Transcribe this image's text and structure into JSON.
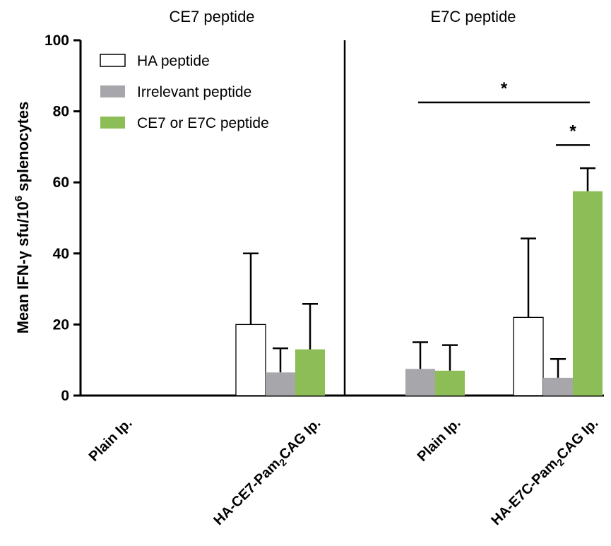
{
  "chart_data": {
    "type": "bar",
    "ylabel": {
      "prefix": "Mean IFN-γ  sfu/10",
      "sup": "6",
      "suffix": " splenocytes"
    },
    "ylim": [
      0,
      100
    ],
    "yticks": [
      "0",
      "20",
      "40",
      "60",
      "80",
      "100"
    ],
    "ytick_values": [
      0,
      20,
      40,
      60,
      80,
      100
    ],
    "legend": {
      "placement": "top-left",
      "entries": [
        {
          "name": "HA peptide",
          "color": "#ffffff"
        },
        {
          "name": "Irrelevant peptide",
          "color": "#a6a6ab"
        },
        {
          "name": "CE7 or E7C peptide",
          "color": "#8dbd56"
        }
      ]
    },
    "panels": [
      {
        "title": "CE7 peptide",
        "categories": [
          {
            "label": "Plain Ip.",
            "parts": [
              {
                "t": "Plain Ip."
              }
            ]
          },
          {
            "label": "HA-CE7-Pam2CAG Ip.",
            "parts": [
              {
                "t": "HA-CE7-Pam"
              },
              {
                "t": "2",
                "sub": true
              },
              {
                "t": "CAG Ip."
              }
            ]
          }
        ],
        "series": [
          {
            "name": "HA peptide",
            "values": [
              0,
              20
            ],
            "errors": [
              0,
              20
            ]
          },
          {
            "name": "Irrelevant peptide",
            "values": [
              0,
              6.5
            ],
            "errors": [
              0,
              6.8
            ]
          },
          {
            "name": "CE7 or E7C peptide",
            "values": [
              0,
              13
            ],
            "errors": [
              0,
              12.8
            ]
          }
        ]
      },
      {
        "title": "E7C peptide",
        "categories": [
          {
            "label": "Plain Ip.",
            "parts": [
              {
                "t": "Plain Ip."
              }
            ]
          },
          {
            "label": "HA-E7C-Pam2CAG Ip.",
            "parts": [
              {
                "t": "HA-E7C-Pam"
              },
              {
                "t": "2",
                "sub": true
              },
              {
                "t": "CAG Ip."
              }
            ]
          }
        ],
        "series": [
          {
            "name": "HA peptide",
            "values": [
              0,
              22
            ],
            "errors": [
              0,
              22.2
            ]
          },
          {
            "name": "Irrelevant peptide",
            "values": [
              7.5,
              5
            ],
            "errors": [
              7.5,
              5.3
            ]
          },
          {
            "name": "CE7 or E7C peptide",
            "values": [
              7,
              57.5
            ],
            "errors": [
              7.2,
              6.5
            ]
          }
        ],
        "annotations": [
          {
            "text": "*",
            "from": {
              "category": 0,
              "series": 1
            },
            "to": {
              "category": 1,
              "series": 2
            },
            "y": 82.5
          },
          {
            "text": "*",
            "from": {
              "category": 1,
              "series": 1
            },
            "to": {
              "category": 1,
              "series": 2
            },
            "y": 70.5
          }
        ]
      }
    ]
  }
}
